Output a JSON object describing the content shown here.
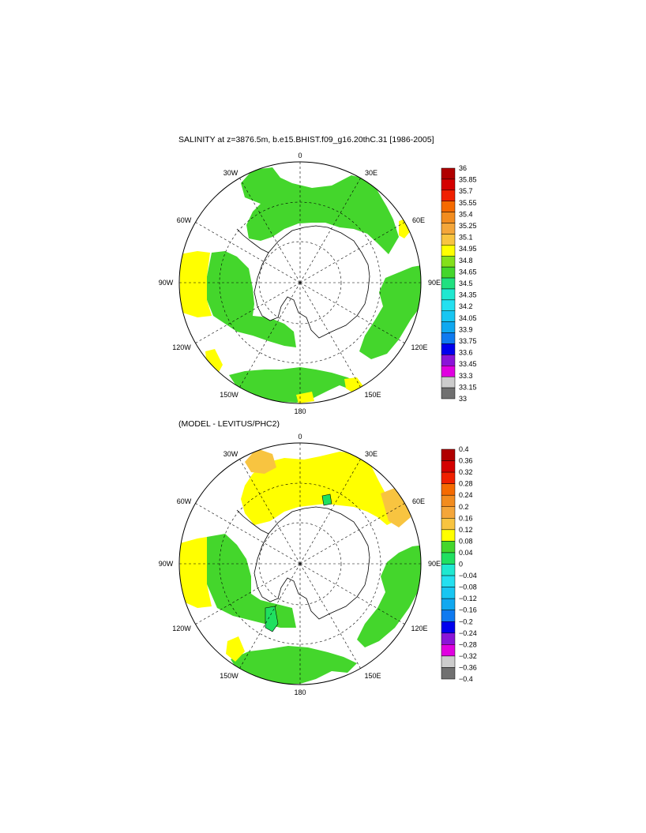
{
  "top_panel": {
    "title": "SALINITY at z=3876.5m, b.e15.BHIST.f09_g16.20thC.31 [1986-2005]",
    "longitude_labels": [
      "0",
      "30E",
      "60E",
      "90E",
      "120E",
      "150E",
      "180",
      "150W",
      "120W",
      "90W",
      "60W",
      "30W"
    ],
    "colorbar": {
      "labels": [
        "36",
        "35.85",
        "35.7",
        "35.55",
        "35.4",
        "35.25",
        "35.1",
        "34.95",
        "34.8",
        "34.65",
        "34.5",
        "34.35",
        "34.2",
        "34.05",
        "33.9",
        "33.75",
        "33.6",
        "33.45",
        "33.3",
        "33.15",
        "33"
      ],
      "colors": [
        "#b00000",
        "#d40000",
        "#f02000",
        "#f56a00",
        "#f28c1f",
        "#f4a63a",
        "#f8c440",
        "#ffff00",
        "#84e01b",
        "#44d62c",
        "#20e080",
        "#1fe8d0",
        "#24e0f0",
        "#18c6f2",
        "#10a8f0",
        "#0f7af0",
        "#0000ee",
        "#8a14d8",
        "#e000e0",
        "#cccccc",
        "#707070"
      ]
    }
  },
  "bottom_panel": {
    "title": "(MODEL - LEVITUS/PHC2)",
    "longitude_labels": [
      "0",
      "30E",
      "60E",
      "90E",
      "120E",
      "150E",
      "180",
      "150W",
      "120W",
      "90W",
      "60W",
      "30W"
    ],
    "colorbar": {
      "labels": [
        "0.4",
        "0.36",
        "0.32",
        "0.28",
        "0.24",
        "0.2",
        "0.16",
        "0.12",
        "0.08",
        "0.04",
        "0",
        "−0.04",
        "−0.08",
        "−0.12",
        "−0.16",
        "−0.2",
        "−0.24",
        "−0.28",
        "−0.32",
        "−0.36",
        "−0.4"
      ],
      "colors": [
        "#b00000",
        "#d40000",
        "#f02000",
        "#f56a00",
        "#f28c1f",
        "#f4a63a",
        "#f8c440",
        "#ffff00",
        "#44d62c",
        "#20e060",
        "#1fe8d0",
        "#24e0f0",
        "#18c6f2",
        "#10a8f0",
        "#0f7af0",
        "#0000ee",
        "#8a14d8",
        "#e000e0",
        "#cccccc",
        "#707070"
      ]
    }
  }
}
